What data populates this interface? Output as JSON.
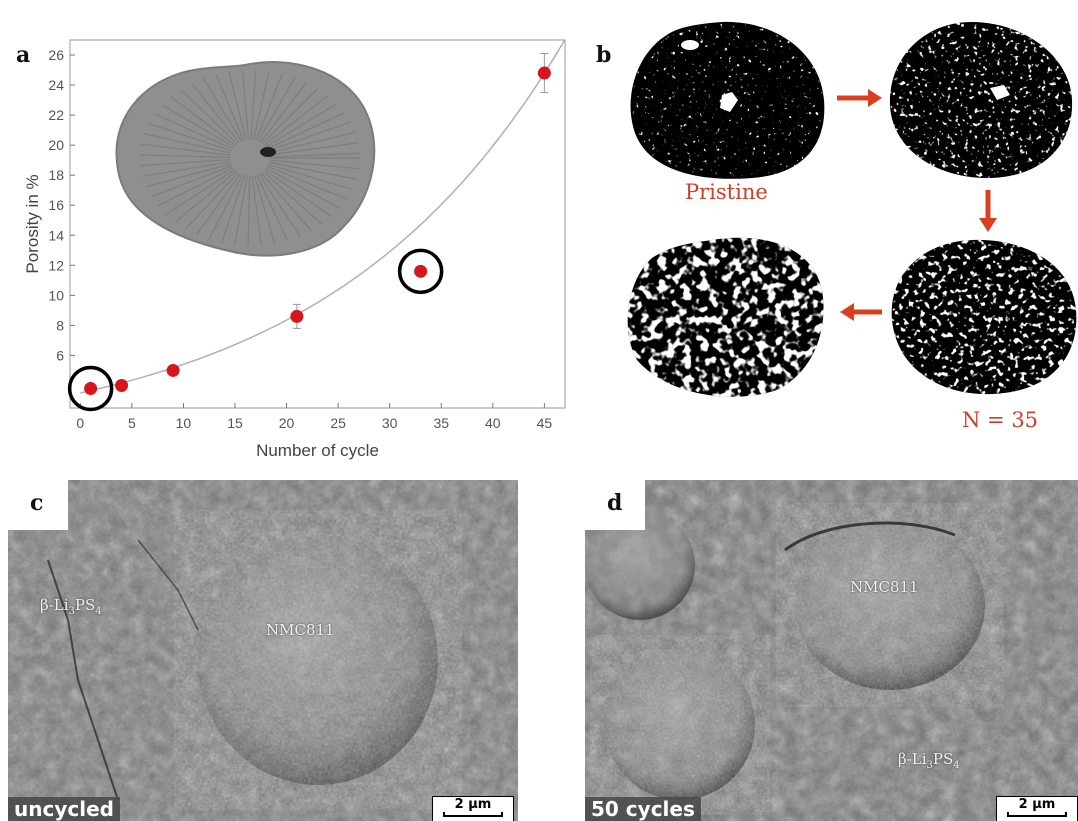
{
  "panels": {
    "a": {
      "letter": "a"
    },
    "b": {
      "letter": "b",
      "pristine_label": "Pristine",
      "n_label": "N = 35"
    },
    "c": {
      "letter": "c",
      "phase_label_main": "β-Li",
      "phase_sub_3": "3",
      "phase_main_2": "PS",
      "phase_sub_4": "4",
      "particle_label": "NMC811",
      "condition": "uncycled",
      "scale": "2 µm"
    },
    "d": {
      "letter": "d",
      "phase_label_main": "β-Li",
      "phase_sub_3": "3",
      "phase_main_2": "PS",
      "phase_sub_4": "4",
      "particle_label": "NMC811",
      "condition": "50 cycles",
      "scale": "2 µm"
    }
  },
  "chart_data": {
    "type": "scatter",
    "xlabel": "Number of cycle",
    "ylabel": "Porosity in %",
    "xlim": [
      -1,
      47
    ],
    "ylim": [
      2.5,
      27
    ],
    "xticks": [
      0,
      5,
      10,
      15,
      20,
      25,
      30,
      35,
      40,
      45
    ],
    "yticks": [
      6,
      8,
      10,
      12,
      14,
      16,
      18,
      20,
      22,
      24,
      26
    ],
    "points": [
      {
        "x": 1,
        "y": 3.8,
        "err": 0.2
      },
      {
        "x": 4,
        "y": 4.0,
        "err": 0.2
      },
      {
        "x": 9,
        "y": 5.0,
        "err": 0.2
      },
      {
        "x": 21,
        "y": 8.6,
        "err": 0.8
      },
      {
        "x": 33,
        "y": 11.6,
        "err": 0.3
      },
      {
        "x": 45,
        "y": 24.8,
        "err": 1.3
      }
    ],
    "fit": {
      "type": "exponential",
      "a": 3.5,
      "b": 0.0435
    },
    "highlighted_points": [
      0,
      4
    ],
    "colors": {
      "marker": "#d8141c",
      "fit": "#b0b0b0",
      "circle": "#000000"
    }
  }
}
